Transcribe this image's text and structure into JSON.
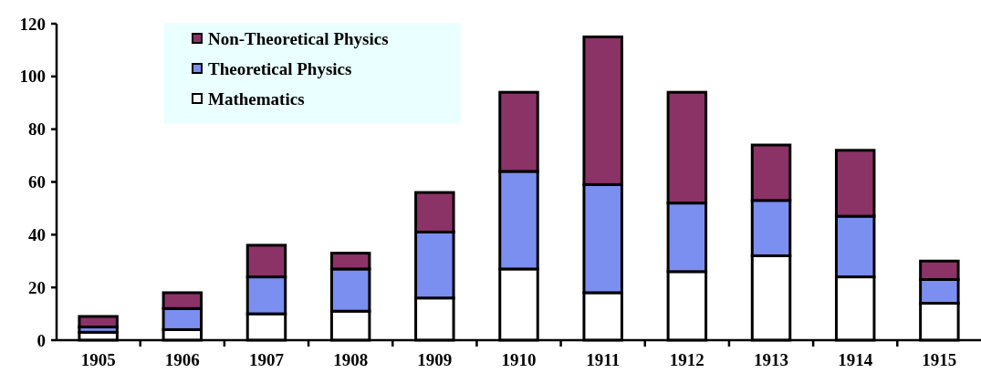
{
  "chart_data": {
    "type": "bar",
    "stacked": true,
    "categories": [
      "1905",
      "1906",
      "1907",
      "1908",
      "1909",
      "1910",
      "1911",
      "1912",
      "1913",
      "1914",
      "1915"
    ],
    "series": [
      {
        "name": "Mathematics",
        "color": "#ffffff",
        "values": [
          3,
          4,
          10,
          11,
          16,
          27,
          18,
          26,
          32,
          24,
          14
        ]
      },
      {
        "name": "Theoretical Physics",
        "color": "#7b8ff0",
        "values": [
          2,
          8,
          14,
          16,
          25,
          37,
          41,
          26,
          21,
          23,
          9
        ]
      },
      {
        "name": "Non-Theoretical Physics",
        "color": "#8b3366",
        "values": [
          4,
          6,
          12,
          6,
          15,
          30,
          56,
          42,
          21,
          25,
          7
        ]
      }
    ],
    "ylim": [
      0,
      120
    ],
    "yticks": [
      0,
      20,
      40,
      60,
      80,
      100,
      120
    ],
    "legend": "top left",
    "grid": false
  }
}
